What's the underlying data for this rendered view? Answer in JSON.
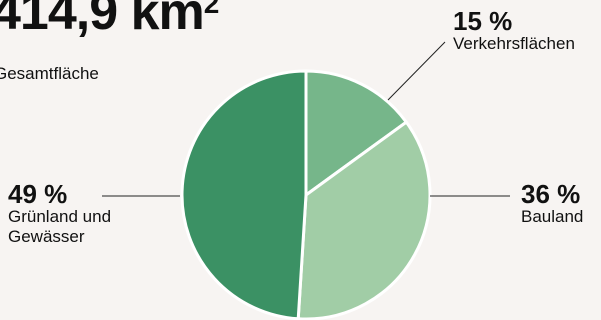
{
  "total": {
    "value": "414,9 km",
    "superscript": "2",
    "label": "Gesamtfläche"
  },
  "chart_data": {
    "type": "pie",
    "slices": [
      {
        "label_pct": "15 %",
        "label_lines": [
          "Verkehrsflächen"
        ],
        "value": 15,
        "color": "#76b68a"
      },
      {
        "label_pct": "36 %",
        "label_lines": [
          "Bauland"
        ],
        "value": 36,
        "color": "#a1cda6"
      },
      {
        "label_pct": "49 %",
        "label_lines": [
          "Grünland und",
          "Gewässer"
        ],
        "value": 49,
        "color": "#3b9164"
      }
    ]
  }
}
